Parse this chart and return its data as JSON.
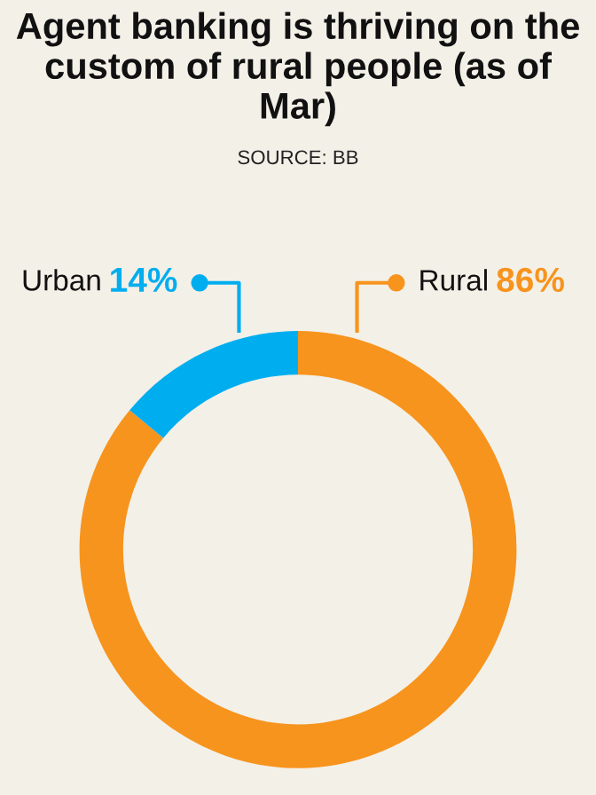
{
  "chart_data": {
    "type": "donut",
    "title": "Agent banking is thriving on the custom of rural people (as of Mar)",
    "annotations": [
      "SOURCE: BB"
    ],
    "categories": [
      "Rural",
      "Urban"
    ],
    "values": [
      86,
      14
    ],
    "colors": [
      "#f7941d",
      "#00aeef"
    ],
    "value_labels": [
      "86%",
      "14%"
    ]
  }
}
